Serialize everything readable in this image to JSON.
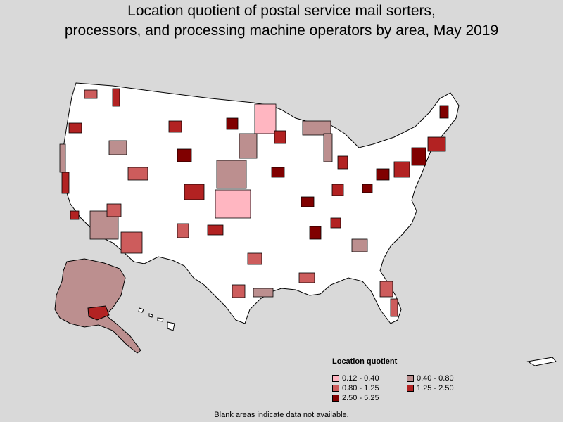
{
  "title": {
    "line1": "Location quotient of postal service mail sorters,",
    "line2": "processors, and processing machine operators by area, May 2019"
  },
  "legend": {
    "title": "Location quotient",
    "items": [
      {
        "label": "0.12 - 0.40",
        "color": "#ffb6c1"
      },
      {
        "label": "0.40 - 0.80",
        "color": "#bc8f8f"
      },
      {
        "label": "0.80 - 1.25",
        "color": "#cd5c5c"
      },
      {
        "label": "1.25 - 2.50",
        "color": "#b22222"
      },
      {
        "label": "2.50 - 5.25",
        "color": "#800000"
      }
    ]
  },
  "footnote": "Blank areas indicate data not available.",
  "colors": {
    "background": "#d9d9d9",
    "blank_area": "#ffffff",
    "border": "#000000"
  }
}
